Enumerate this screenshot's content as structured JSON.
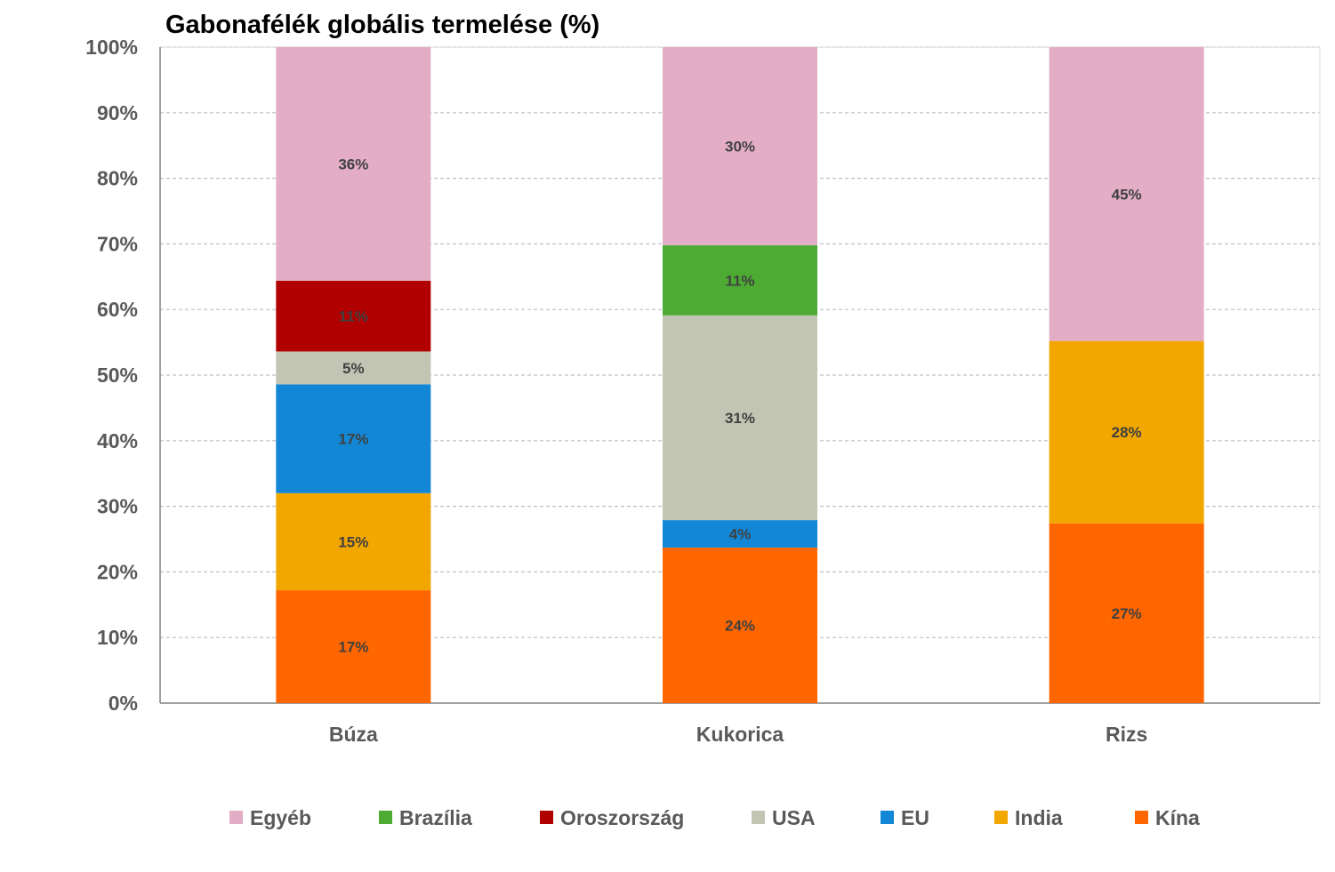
{
  "chart_data": {
    "type": "bar",
    "stacked": true,
    "title": "Gabonafélék globális termelése (%)",
    "categories": [
      "Búza",
      "Kukorica",
      "Rizs"
    ],
    "y_ticks": [
      "0%",
      "10%",
      "20%",
      "30%",
      "40%",
      "50%",
      "60%",
      "70%",
      "80%",
      "90%",
      "100%"
    ],
    "ylim": [
      0,
      100
    ],
    "grid": true,
    "legend_position": "bottom",
    "series": [
      {
        "name": "Kína",
        "color": "#FF6600",
        "values": [
          17.2,
          23.7,
          27.4
        ],
        "labels": [
          "17%",
          "24%",
          "27%"
        ]
      },
      {
        "name": "India",
        "color": "#F2A600",
        "values": [
          14.8,
          0,
          27.8
        ],
        "labels": [
          "15%",
          "",
          "28%"
        ]
      },
      {
        "name": "EU",
        "color": "#1287D6",
        "values": [
          16.6,
          4.2,
          0
        ],
        "labels": [
          "17%",
          "4%",
          ""
        ]
      },
      {
        "name": "USA",
        "color": "#C2C5B4",
        "values": [
          5.0,
          31.2,
          0
        ],
        "labels": [
          "5%",
          "31%",
          ""
        ]
      },
      {
        "name": "Oroszország",
        "color": "#B00000",
        "values": [
          10.8,
          0,
          0
        ],
        "labels": [
          "11%",
          "",
          ""
        ]
      },
      {
        "name": "Brazília",
        "color": "#4DAB33",
        "values": [
          0,
          10.7,
          0
        ],
        "labels": [
          "",
          "11%",
          ""
        ]
      },
      {
        "name": "Egyéb",
        "color": "#E3AEC5",
        "values": [
          35.6,
          30.2,
          44.8
        ],
        "labels": [
          "36%",
          "30%",
          "45%"
        ]
      }
    ],
    "legend_order": [
      "Egyéb",
      "Brazília",
      "Oroszország",
      "USA",
      "EU",
      "India",
      "Kína"
    ]
  }
}
